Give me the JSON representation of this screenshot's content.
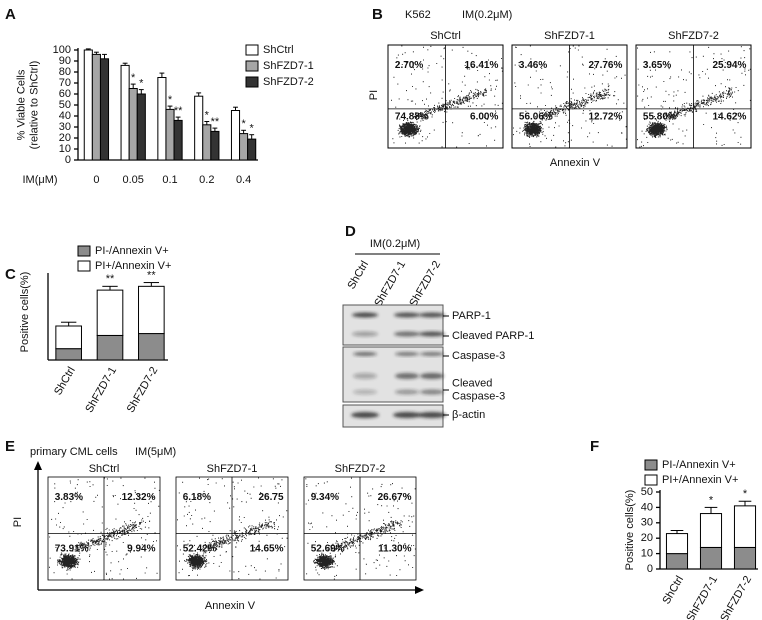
{
  "panel_labels": [
    "A",
    "B",
    "C",
    "D",
    "E",
    "F"
  ],
  "chart_data": [
    {
      "type": "bar",
      "y_label": "% Viable Cells\n(relative to ShCtrl)",
      "x_label": "IM(μM)",
      "categories": [
        "0",
        "0.05",
        "0.1",
        "0.2",
        "0.4"
      ],
      "ylim": [
        0,
        100
      ],
      "yticks": [
        0,
        10,
        20,
        30,
        40,
        50,
        60,
        70,
        80,
        90,
        100
      ],
      "series": [
        {
          "name": "ShCtrl",
          "color": "#ffffff",
          "values": [
            100,
            86,
            75,
            58,
            45
          ],
          "errors": [
            1,
            2,
            4,
            3,
            3
          ],
          "significance": [
            null,
            null,
            null,
            null,
            null
          ]
        },
        {
          "name": "ShFZD7-1",
          "color": "#a6a6a6",
          "values": [
            96,
            65,
            46,
            32,
            24
          ],
          "errors": [
            2,
            4,
            3,
            3,
            3
          ],
          "significance": [
            null,
            "*",
            "*",
            "*",
            "*"
          ]
        },
        {
          "name": "ShFZD7-2",
          "color": "#333333",
          "values": [
            92,
            60,
            36,
            26,
            19
          ],
          "errors": [
            4,
            4,
            3,
            3,
            4
          ],
          "significance": [
            null,
            "*",
            "**",
            "**",
            "*"
          ]
        }
      ]
    },
    {
      "type": "stacked_bar",
      "y_label": "Positive cells(%)",
      "categories": [
        "ShCtrl",
        "ShFZD7-1",
        "ShFZD7-2"
      ],
      "ylim": [
        0,
        45
      ],
      "series": [
        {
          "name": "PI-/Annexin V+",
          "color": "#8c8c8c",
          "values": [
            6,
            13,
            14
          ],
          "errors": [
            1,
            1,
            1
          ]
        },
        {
          "name": "PI+/Annexin V+",
          "color": "#ffffff",
          "values": [
            12,
            24,
            25
          ],
          "errors": [
            2,
            2,
            2
          ]
        }
      ],
      "significance": [
        null,
        "**",
        "**"
      ]
    },
    {
      "type": "stacked_bar",
      "y_label": "Positive cells(%)",
      "categories": [
        "ShCtrl",
        "ShFZD7-1",
        "ShFZD7-2"
      ],
      "ylim": [
        0,
        50
      ],
      "yticks": [
        0,
        10,
        20,
        30,
        40,
        50
      ],
      "series": [
        {
          "name": "PI-/Annexin V+",
          "color": "#8c8c8c",
          "values": [
            10,
            14,
            14
          ],
          "errors": [
            2,
            2,
            3
          ]
        },
        {
          "name": "PI+/Annexin V+",
          "color": "#ffffff",
          "values": [
            13,
            22,
            27
          ],
          "errors": [
            2,
            4,
            3
          ]
        }
      ],
      "significance": [
        null,
        "*",
        "*"
      ]
    }
  ],
  "flow_b": {
    "cell_line": "K562",
    "treatment": "IM(0.2μM)",
    "y_label": "PI",
    "x_label": "Annexin V",
    "plots": [
      {
        "name": "ShCtrl",
        "upper_left": "2.70%",
        "upper_right": "16.41%",
        "lower_left": "74.88%",
        "lower_right": "6.00%"
      },
      {
        "name": "ShFZD7-1",
        "upper_left": "3.46%",
        "upper_right": "27.76%",
        "lower_left": "56.06%",
        "lower_right": "12.72%"
      },
      {
        "name": "ShFZD7-2",
        "upper_left": "3.65%",
        "upper_right": "25.94%",
        "lower_left": "55.80%",
        "lower_right": "14.62%"
      }
    ]
  },
  "flow_e": {
    "cell_line": "primary CML cells",
    "treatment": "IM(5μM)",
    "y_label": "PI",
    "x_label": "Annexin V",
    "plots": [
      {
        "name": "ShCtrl",
        "upper_left": "3.83%",
        "upper_right": "12.32%",
        "lower_left": "73.91%",
        "lower_right": "9.94%"
      },
      {
        "name": "ShFZD7-1",
        "upper_left": "6.18%",
        "upper_right": "26.75",
        "lower_left": "52.42%",
        "lower_right": "14.65%"
      },
      {
        "name": "ShFZD7-2",
        "upper_left": "9.34%",
        "upper_right": "26.67%",
        "lower_left": "52.69%",
        "lower_right": "11.30%"
      }
    ]
  },
  "blot": {
    "treatment": "IM(0.2μM)",
    "lanes": [
      "ShCtrl",
      "ShFZD7-1",
      "ShFZD7-2"
    ],
    "bands": [
      "PARP-1",
      "Cleaved PARP-1",
      "Caspase-3",
      "Cleaved\nCaspase-3",
      "β-actin"
    ]
  }
}
